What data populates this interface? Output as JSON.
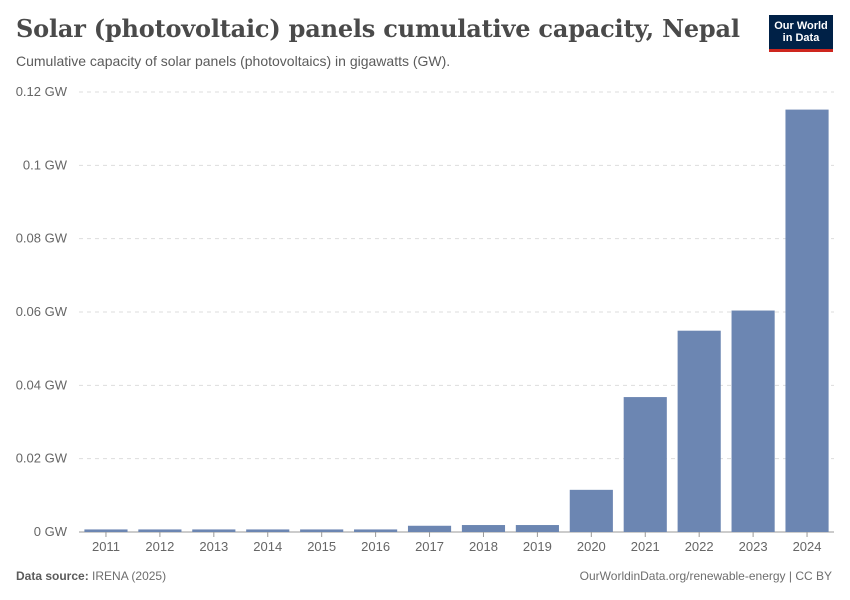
{
  "header": {
    "title": "Solar (photovoltaic) panels cumulative capacity, Nepal",
    "subtitle": "Cumulative capacity of solar panels (photovoltaics) in gigawatts (GW)."
  },
  "logo": {
    "line1": "Our World",
    "line2": "in Data"
  },
  "footer": {
    "source_label": "Data source:",
    "source_value": "IRENA (2025)",
    "right_text": "OurWorldinData.org/renewable-energy | CC BY"
  },
  "colors": {
    "bar": "#6c86b2",
    "grid": "#dddddd",
    "axis": "#999999",
    "text": "#666666"
  },
  "chart_data": {
    "type": "bar",
    "title": "Solar (photovoltaic) panels cumulative capacity, Nepal",
    "xlabel": "",
    "ylabel": "",
    "unit": "GW",
    "ylim": [
      0,
      0.12
    ],
    "yticks": [
      0,
      0.02,
      0.04,
      0.06,
      0.08,
      0.1,
      0.12
    ],
    "ytick_labels": [
      "0 GW",
      "0.02 GW",
      "0.04 GW",
      "0.06 GW",
      "0.08 GW",
      "0.1 GW",
      "0.12 GW"
    ],
    "categories": [
      "2011",
      "2012",
      "2013",
      "2014",
      "2015",
      "2016",
      "2017",
      "2018",
      "2019",
      "2020",
      "2021",
      "2022",
      "2023",
      "2024"
    ],
    "values": [
      0.0007,
      0.0007,
      0.0007,
      0.0007,
      0.0007,
      0.0007,
      0.0017,
      0.0019,
      0.0019,
      0.0115,
      0.0368,
      0.0549,
      0.0604,
      0.1152
    ]
  }
}
